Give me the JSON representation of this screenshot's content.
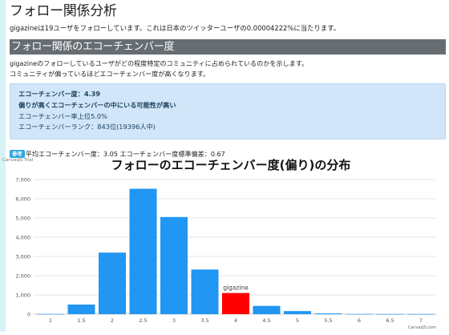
{
  "page": {
    "title": "フォロー関係分析",
    "intro": "gigazineは19ユーザをフォローしています。これは日本のツイッターユーザの0.00004222%に当たります。"
  },
  "section": {
    "title": "フォロー関係のエコーチェンバー度",
    "desc_lines": [
      "gigazineのフォローしているユーザがどの程度特定のコミュニティに占められているのかを示します。",
      "コミュニティが偏っているほどエコーチェンバー度が高くなります。"
    ]
  },
  "info": {
    "score_line": "エコーチェンバー度：4.39",
    "verdict": "偏りが高くエコーチェンバーの中にいる可能性が高い",
    "percentile": "エコーチェンバー率上位5.0%",
    "rank": "エコーチェンバーランク：843位(19396人中)"
  },
  "stats": {
    "badge": "参考",
    "text": "平均エコーチェンバー度：3.05 エコーチェンバー度標準偏差：0.67"
  },
  "chart_watermark_top": "CanvasJS Trial",
  "chart_watermark_bottom": "CanvasJS.com",
  "colors": {
    "bar": "#2196f3",
    "highlight": "#ff0000",
    "section_header": "#666d73",
    "info_box": "#d1e6f8"
  },
  "chart_data": {
    "type": "bar",
    "title": "フォローのエコーチェンバー度(偏り)の分布",
    "categories": [
      "1",
      "1.5",
      "2",
      "2.5",
      "3",
      "3.5",
      "4",
      "4.5",
      "5",
      "5.5",
      "6",
      "6.5",
      "7"
    ],
    "values": [
      10,
      500,
      3200,
      6520,
      5050,
      2320,
      1100,
      430,
      160,
      40,
      10,
      5,
      5
    ],
    "highlight_index": 6,
    "highlight_label": "gigazine",
    "ylim": [
      0,
      7000
    ],
    "yticks": [
      0,
      1000,
      2000,
      3000,
      4000,
      5000,
      6000,
      7000
    ],
    "ytick_labels": [
      "0",
      "1,000",
      "2,000",
      "3,000",
      "4,000",
      "5,000",
      "6,000",
      "7,000"
    ],
    "grid": true
  }
}
